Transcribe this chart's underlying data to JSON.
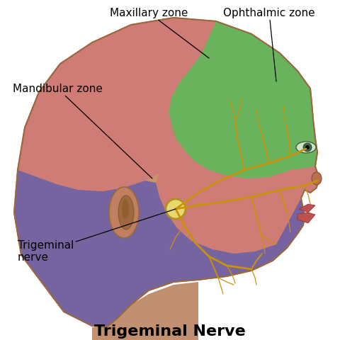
{
  "title": "Trigeminal Nerve",
  "title_fontsize": 16,
  "background_color": "#ffffff",
  "labels": {
    "maxillary_zone": "Maxillary zone",
    "ophthalmic_zone": "Ophthalmic zone",
    "mandibular_zone": "Mandibular zone",
    "trigeminal_nerve": "Trigeminal\nnerve"
  },
  "skin_color": "#c8936a",
  "skin_shadow": "#b07850",
  "ophthalmic_color": "#5cb85c",
  "maxillary_color": "#d07878",
  "mandibular_color": "#6b5ea8",
  "nerve_color": "#c8920a",
  "ganglion_color": "#e8d870",
  "label_fontsize": 11
}
